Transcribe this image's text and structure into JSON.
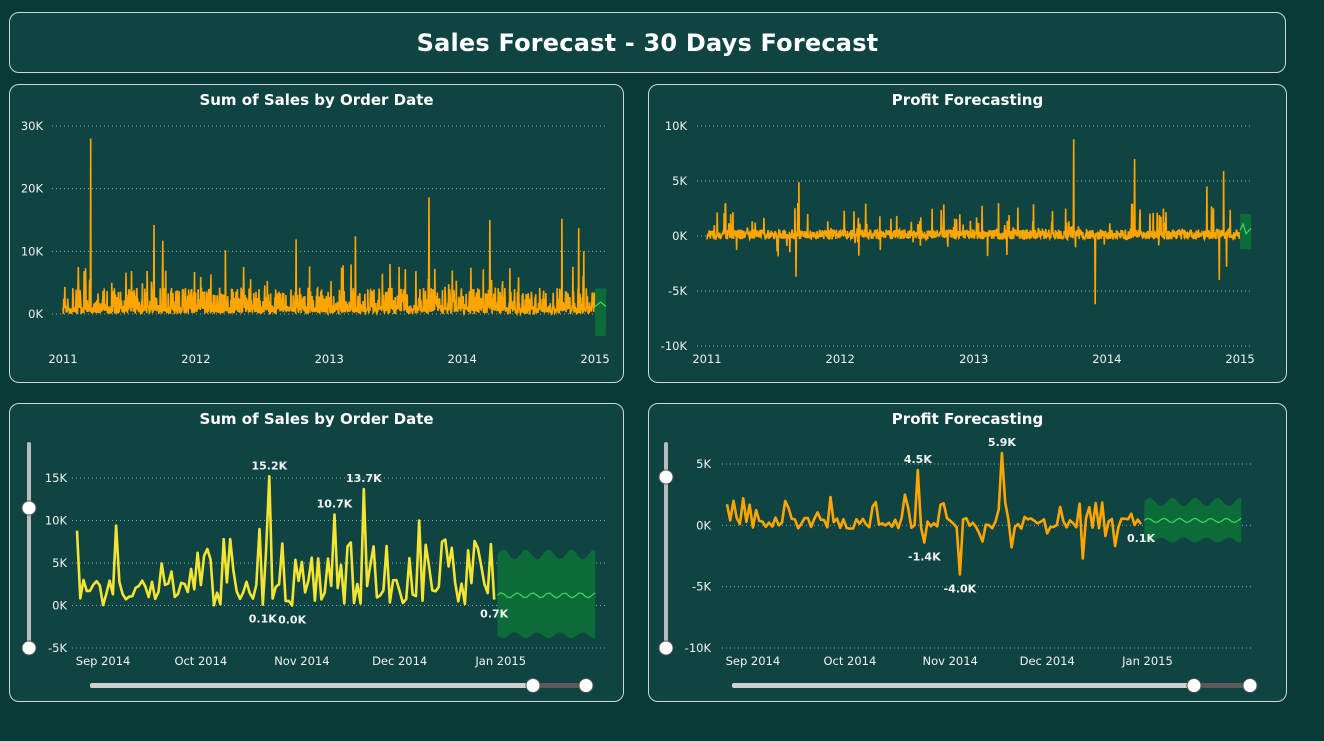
{
  "page_title": "Sales Forecast - 30 Days Forecast",
  "colors": {
    "background": "#073a37",
    "panel": "#0f4442",
    "sales_line": "#ffa500",
    "zoom_sales_line": "#f5e533",
    "profit_line": "#ffa500",
    "forecast_line": "#3ddc5a",
    "forecast_band": "#0d6b3a"
  },
  "chart_data": [
    {
      "id": "sales-overview",
      "type": "line",
      "title": "Sum of Sales by Order Date",
      "x_ticks": [
        "2011",
        "2012",
        "2013",
        "2014",
        "2015"
      ],
      "y_ticks": [
        "30K",
        "20K",
        "10K",
        "0K"
      ],
      "ylim": [
        0,
        30000
      ],
      "xlim": [
        "2011-01-01",
        "2015-01-31"
      ],
      "grid": true,
      "series": [
        {
          "values_approx": "daily sales, mostly 0–6K with peaks",
          "peaks": [
            {
              "x": "2011-03-18",
              "y": 28000
            },
            {
              "x": "2011-09-08",
              "y": 14200
            },
            {
              "x": "2011-10-02",
              "y": 11700
            },
            {
              "x": "2012-03-22",
              "y": 10200
            },
            {
              "x": "2012-10-02",
              "y": 11900
            },
            {
              "x": "2013-03-14",
              "y": 12400
            },
            {
              "x": "2013-10-02",
              "y": 18600
            },
            {
              "x": "2014-03-18",
              "y": 15000
            },
            {
              "x": "2014-10-02",
              "y": 15200
            },
            {
              "x": "2014-11-17",
              "y": 13700
            },
            {
              "x": "2014-12-01",
              "y": 10000
            }
          ]
        }
      ],
      "forecast": {
        "x_start": "2015-01-01",
        "x_end": "2015-01-31",
        "center": 1200,
        "band": [
          -3500,
          6000
        ]
      }
    },
    {
      "id": "profit-overview",
      "type": "line",
      "title": "Profit Forecasting",
      "x_ticks": [
        "2011",
        "2012",
        "2013",
        "2014",
        "2015"
      ],
      "y_ticks": [
        "10K",
        "5K",
        "0K",
        "-5K",
        "-10K"
      ],
      "ylim": [
        -10000,
        10000
      ],
      "xlim": [
        "2011-01-01",
        "2015-01-31"
      ],
      "grid": true,
      "series": [
        {
          "values_approx": "daily profit, mostly -1K to 2K with spikes",
          "peaks": [
            {
              "x": "2011-09-10",
              "y": 4900
            },
            {
              "x": "2011-09-02",
              "y": -3700
            },
            {
              "x": "2013-10-02",
              "y": 8800
            },
            {
              "x": "2013-11-30",
              "y": -6200
            },
            {
              "x": "2014-03-18",
              "y": 7000
            },
            {
              "x": "2014-10-02",
              "y": 4500
            },
            {
              "x": "2014-11-17",
              "y": 5900
            },
            {
              "x": "2014-11-05",
              "y": -4000
            },
            {
              "x": "2014-11-25",
              "y": -2800
            }
          ]
        }
      ],
      "forecast": {
        "x_start": "2015-01-01",
        "x_end": "2015-01-31",
        "center": 500,
        "band": [
          -1200,
          2000
        ]
      }
    },
    {
      "id": "sales-zoom",
      "type": "line",
      "title": "Sum of Sales by Order Date",
      "x_ticks": [
        "Sep 2014",
        "Oct 2014",
        "Nov 2014",
        "Dec 2014",
        "Jan 2015"
      ],
      "y_ticks": [
        "15K",
        "10K",
        "5K",
        "0K",
        "-5K"
      ],
      "ylim": [
        -5000,
        15000
      ],
      "grid": true,
      "series": [
        {
          "name": "Sales",
          "values_approx": "daily sales Aug 24 2014 – Dec 30 2014"
        }
      ],
      "data_labels": [
        {
          "text": "15.2K",
          "x": "2014-10-22",
          "y": 15200
        },
        {
          "text": "10.7K",
          "x": "2014-11-11",
          "y": 10700
        },
        {
          "text": "13.7K",
          "x": "2014-11-20",
          "y": 13700
        },
        {
          "text": "0.1K",
          "x": "2014-10-20",
          "y": 100
        },
        {
          "text": "0.0K",
          "x": "2014-10-29",
          "y": 0
        },
        {
          "text": "0.7K",
          "x": "2014-12-30",
          "y": 700
        }
      ],
      "forecast": {
        "x_start": "2014-12-31",
        "x_end": "2015-01-30",
        "center": 1200,
        "band": [
          -3500,
          6000
        ]
      }
    },
    {
      "id": "profit-zoom",
      "type": "line",
      "title": "Profit Forecasting",
      "x_ticks": [
        "Sep 2014",
        "Oct 2014",
        "Nov 2014",
        "Dec 2014",
        "Jan 2015"
      ],
      "y_ticks": [
        "5K",
        "0K",
        "-5K",
        "-10K"
      ],
      "ylim": [
        -10000,
        5000
      ],
      "grid": true,
      "series": [
        {
          "name": "Profit",
          "values_approx": "daily profit Aug 24 2014 – Dec 30 2014"
        }
      ],
      "data_labels": [
        {
          "text": "4.5K",
          "x": "2014-10-22",
          "y": 4500
        },
        {
          "text": "5.9K",
          "x": "2014-11-17",
          "y": 5900
        },
        {
          "text": "-1.4K",
          "x": "2014-10-24",
          "y": -1400
        },
        {
          "text": "-4.0K",
          "x": "2014-11-04",
          "y": -4000
        },
        {
          "text": "0.1K",
          "x": "2014-12-30",
          "y": 100
        }
      ],
      "forecast": {
        "x_start": "2014-12-31",
        "x_end": "2015-01-30",
        "center": 400,
        "band": [
          -1200,
          1900
        ]
      }
    }
  ],
  "panels": {
    "p1": {
      "title": "Sum of Sales by Order Date"
    },
    "p2": {
      "title": "Profit Forecasting"
    },
    "p3": {
      "title": "Sum of Sales by Order Date"
    },
    "p4": {
      "title": "Profit Forecasting"
    }
  },
  "sliders": {
    "p3_x_range": [
      0.0,
      0.9
    ],
    "p3_y_range": [
      0.0,
      1.0
    ],
    "p4_x_range": [
      0.0,
      0.9
    ],
    "p4_y_range": [
      0.0,
      1.0
    ]
  }
}
